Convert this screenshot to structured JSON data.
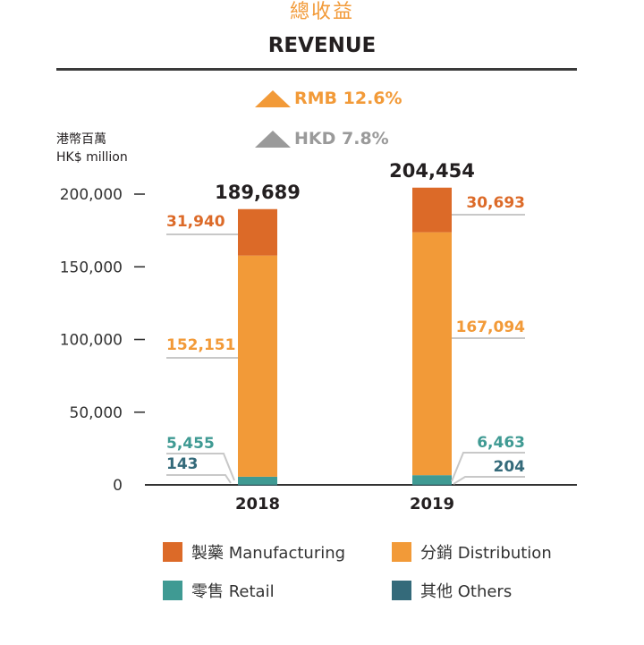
{
  "header": {
    "title_cn": "總收益",
    "title_en": "REVENUE"
  },
  "growth": [
    {
      "label": "RMB 12.6%",
      "color": "#f29a38"
    },
    {
      "label": "HKD 7.8%",
      "color": "#9a9a9a"
    }
  ],
  "unit": {
    "cn": "港幣百萬",
    "en": "HK$ million"
  },
  "colors": {
    "title": "#f29a38",
    "axis": "#333333",
    "leader": "#c8c8c8"
  },
  "chart_data": {
    "type": "bar",
    "stacked": true,
    "title": "REVENUE",
    "ylabel": "HK$ million",
    "ylim": [
      0,
      200000
    ],
    "yticks": [
      0,
      50000,
      100000,
      150000,
      200000
    ],
    "ytick_labels": [
      "0",
      "50,000",
      "100,000",
      "150,000",
      "200,000"
    ],
    "categories": [
      "2018",
      "2019"
    ],
    "totals": [
      189689,
      204454
    ],
    "total_labels": [
      "189,689",
      "204,454"
    ],
    "series": [
      {
        "name": "Others",
        "label": "其他 Others",
        "color": "#346a7a",
        "values": [
          143,
          204
        ],
        "value_labels": [
          "143",
          "204"
        ],
        "label_color": "#346a7a"
      },
      {
        "name": "Retail",
        "label": "零售 Retail",
        "color": "#3f9a93",
        "values": [
          5455,
          6463
        ],
        "value_labels": [
          "5,455",
          "6,463"
        ],
        "label_color": "#3f9a93"
      },
      {
        "name": "Distribution",
        "label": "分銷 Distribution",
        "color": "#f29a38",
        "values": [
          152151,
          167094
        ],
        "value_labels": [
          "152,151",
          "167,094"
        ],
        "label_color": "#f29a38"
      },
      {
        "name": "Manufacturing",
        "label": "製藥 Manufacturing",
        "color": "#dc6a28",
        "values": [
          31940,
          30693
        ],
        "value_labels": [
          "31,940",
          "30,693"
        ],
        "label_color": "#dc6a28"
      }
    ],
    "legend": {
      "order": [
        "Manufacturing",
        "Distribution",
        "Retail",
        "Others"
      ],
      "position": "bottom"
    }
  }
}
